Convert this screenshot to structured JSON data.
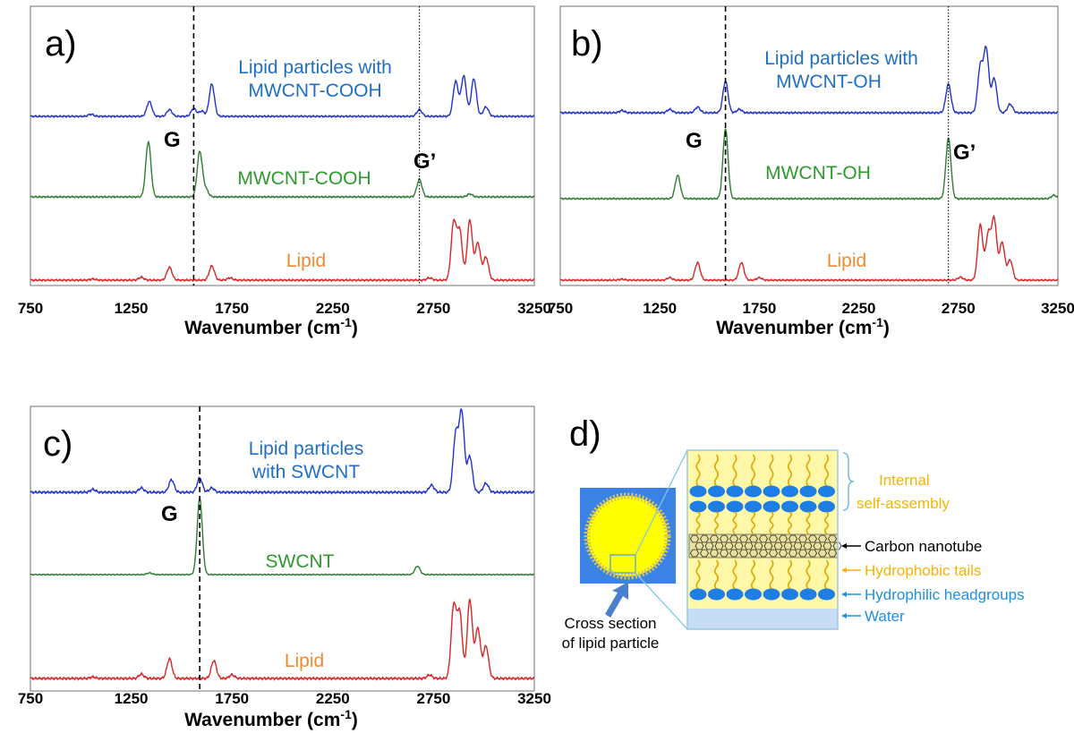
{
  "colors": {
    "blue_trace": "#2233cc",
    "green_trace": "#2e7d32",
    "red_trace": "#d62728",
    "blue_text": "#1f6fc5",
    "green_text": "#2e9a2e",
    "orange_text": "#f08a30",
    "yellow_text": "#f5b400",
    "hydrophilic_text": "#1f8fe0"
  },
  "chart_data": [
    {
      "panel": "a)",
      "type": "line",
      "xlabel": "Wavenumber (cm",
      "xlabel_sup": "-1",
      "xlabel_close": ")",
      "xlim": [
        750,
        3250
      ],
      "xticks": [
        "750",
        "1250",
        "1750",
        "2250",
        "2750",
        "3250"
      ],
      "vlines": [
        {
          "x": 1560,
          "style": "dashed"
        },
        {
          "x": 2680,
          "style": "dotted"
        }
      ],
      "peak_labels": [
        "G",
        "G’"
      ],
      "series": [
        {
          "name": "Lipid particles with MWCNT-COOH",
          "label_lines": [
            "Lipid particles with",
            "MWCNT-COOH"
          ],
          "color": "blue",
          "peaks": [
            [
              1050,
              0.08
            ],
            [
              1340,
              0.55
            ],
            [
              1440,
              0.25
            ],
            [
              1560,
              0.3
            ],
            [
              1600,
              0.2
            ],
            [
              1650,
              1.2
            ],
            [
              2680,
              0.25
            ],
            [
              2860,
              1.3
            ],
            [
              2900,
              1.5
            ],
            [
              2950,
              1.4
            ],
            [
              3010,
              0.35
            ]
          ]
        },
        {
          "name": "MWCNT-COOH",
          "label_lines": [
            "MWCNT-COOH"
          ],
          "color": "green",
          "peaks": [
            [
              1335,
              2.2
            ],
            [
              1590,
              1.8
            ],
            [
              1620,
              0.3
            ],
            [
              2680,
              0.7
            ],
            [
              2930,
              0.12
            ]
          ]
        },
        {
          "name": "Lipid",
          "label_lines": [
            "Lipid"
          ],
          "color": "red",
          "peaks": [
            [
              1060,
              0.04
            ],
            [
              1300,
              0.1
            ],
            [
              1440,
              0.45
            ],
            [
              1650,
              0.5
            ],
            [
              1740,
              0.08
            ],
            [
              2730,
              0.08
            ],
            [
              2850,
              2.0
            ],
            [
              2880,
              1.7
            ],
            [
              2930,
              2.1
            ],
            [
              2970,
              1.3
            ],
            [
              3010,
              0.8
            ]
          ]
        }
      ]
    },
    {
      "panel": "b)",
      "type": "line",
      "xlabel": "Wavenumber (cm",
      "xlabel_sup": "-1",
      "xlabel_close": ")",
      "xlim": [
        750,
        3250
      ],
      "xticks": [
        "750",
        "1250",
        "1750",
        "2250",
        "2750",
        "3250"
      ],
      "vlines": [
        {
          "x": 1580,
          "style": "dashed"
        },
        {
          "x": 2700,
          "style": "dotted"
        }
      ],
      "peak_labels": [
        "G",
        "G’"
      ],
      "series": [
        {
          "name": "Lipid particles with MWCNT-OH",
          "label_lines": [
            "Lipid particles with",
            "MWCNT-OH"
          ],
          "color": "blue",
          "peaks": [
            [
              1060,
              0.08
            ],
            [
              1300,
              0.12
            ],
            [
              1440,
              0.2
            ],
            [
              1580,
              1.1
            ],
            [
              1650,
              0.12
            ],
            [
              2700,
              1.0
            ],
            [
              2860,
              1.6
            ],
            [
              2890,
              2.2
            ],
            [
              2930,
              1.2
            ],
            [
              3010,
              0.3
            ]
          ]
        },
        {
          "name": "MWCNT-OH",
          "label_lines": [
            "MWCNT-OH"
          ],
          "color": "green",
          "peaks": [
            [
              1340,
              1.0
            ],
            [
              1580,
              3.0
            ],
            [
              2700,
              2.6
            ],
            [
              3230,
              0.15
            ]
          ]
        },
        {
          "name": "Lipid",
          "label_lines": [
            "Lipid"
          ],
          "color": "red",
          "peaks": [
            [
              1060,
              0.04
            ],
            [
              1300,
              0.1
            ],
            [
              1440,
              0.7
            ],
            [
              1660,
              0.7
            ],
            [
              1750,
              0.1
            ],
            [
              2760,
              0.12
            ],
            [
              2860,
              2.2
            ],
            [
              2900,
              1.8
            ],
            [
              2930,
              2.4
            ],
            [
              2970,
              1.5
            ],
            [
              3010,
              0.8
            ]
          ]
        }
      ]
    },
    {
      "panel": "c)",
      "type": "line",
      "xlabel": "Wavenumber (cm",
      "xlabel_sup": "-1",
      "xlabel_close": ")",
      "xlim": [
        750,
        3250
      ],
      "xticks": [
        "750",
        "1250",
        "1750",
        "2250",
        "2750",
        "3250"
      ],
      "vlines": [
        {
          "x": 1590,
          "style": "dashed"
        }
      ],
      "peak_labels": [
        "G"
      ],
      "series": [
        {
          "name": "Lipid particles with SWCNT",
          "label_lines": [
            "Lipid particles",
            "with SWCNT"
          ],
          "color": "blue",
          "peaks": [
            [
              1060,
              0.08
            ],
            [
              1300,
              0.12
            ],
            [
              1450,
              0.35
            ],
            [
              1590,
              0.4
            ],
            [
              1650,
              0.12
            ],
            [
              2740,
              0.2
            ],
            [
              2860,
              1.6
            ],
            [
              2890,
              2.2
            ],
            [
              2930,
              1.0
            ],
            [
              3010,
              0.25
            ]
          ]
        },
        {
          "name": "SWCNT",
          "label_lines": [
            "SWCNT"
          ],
          "color": "green",
          "peaks": [
            [
              1340,
              0.1
            ],
            [
              1590,
              4.5
            ],
            [
              2670,
              0.5
            ]
          ]
        },
        {
          "name": "Lipid",
          "label_lines": [
            "Lipid"
          ],
          "color": "red",
          "peaks": [
            [
              1060,
              0.04
            ],
            [
              1300,
              0.12
            ],
            [
              1440,
              0.55
            ],
            [
              1660,
              0.5
            ],
            [
              1750,
              0.1
            ],
            [
              2730,
              0.1
            ],
            [
              2850,
              2.0
            ],
            [
              2880,
              1.8
            ],
            [
              2930,
              2.2
            ],
            [
              2970,
              1.4
            ],
            [
              3010,
              0.9
            ]
          ]
        }
      ]
    }
  ],
  "diagram": {
    "panel": "d)",
    "cross_section_caption": [
      "Cross section",
      "of lipid particle"
    ],
    "labels": {
      "internal": [
        "Internal",
        "self-assembly"
      ],
      "carbon_nanotube": "Carbon nanotube",
      "hydrophobic_tails": "Hydrophobic tails",
      "hydrophilic_headgroups": "Hydrophilic headgroups",
      "water": "Water"
    }
  }
}
